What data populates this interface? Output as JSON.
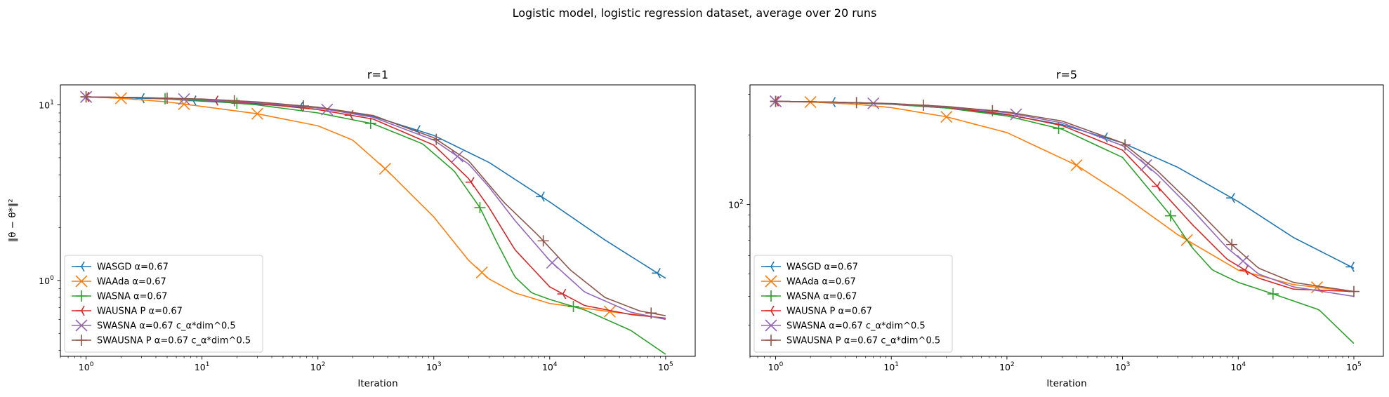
{
  "figure": {
    "suptitle": "Logistic model, logistic regression dataset, average over 20 runs"
  },
  "chart_data": [
    {
      "type": "line",
      "title": "r=1",
      "xlabel": "Iteration",
      "ylabel": "‖θ − θ*‖²",
      "xscale": "log",
      "yscale": "log",
      "xlim": [
        0.6,
        180000
      ],
      "ylim": [
        0.37,
        13
      ],
      "xticks": [
        {
          "v": 1,
          "b": "10",
          "e": "0"
        },
        {
          "v": 10,
          "b": "10",
          "e": "1"
        },
        {
          "v": 100,
          "b": "10",
          "e": "2"
        },
        {
          "v": 1000,
          "b": "10",
          "e": "3"
        },
        {
          "v": 10000,
          "b": "10",
          "e": "4"
        },
        {
          "v": 100000,
          "b": "10",
          "e": "5"
        }
      ],
      "yticks": [
        {
          "v": 1,
          "b": "10",
          "e": "0"
        },
        {
          "v": 10,
          "b": "10",
          "e": "1"
        }
      ],
      "grid": false,
      "legend": "lower-left",
      "series": [
        {
          "name": "WASGD α=0.67",
          "color": "#1f77b4",
          "marker": "tri_left",
          "x": [
            1,
            2,
            5,
            10,
            30,
            100,
            300,
            1000,
            3000,
            10000,
            30000,
            100000
          ],
          "y": [
            11.1,
            11.0,
            10.8,
            10.5,
            10.1,
            9.6,
            8.6,
            6.7,
            4.7,
            2.8,
            1.7,
            1.03
          ],
          "mx": [
            1,
            3,
            8.4,
            70,
            720,
            8500,
            85000
          ]
        },
        {
          "name": "WAAda α=0.67",
          "color": "#ff7f0e",
          "marker": "x",
          "x": [
            1,
            2,
            5,
            10,
            30,
            100,
            200,
            400,
            1000,
            2000,
            3000,
            5000,
            10000,
            30000,
            100000
          ],
          "y": [
            11.1,
            10.9,
            10.4,
            9.8,
            8.9,
            7.6,
            6.3,
            4.2,
            2.3,
            1.3,
            1.02,
            0.85,
            0.74,
            0.67,
            0.61
          ],
          "mx": [
            1,
            2,
            7,
            30,
            380,
            2600,
            33000
          ]
        },
        {
          "name": "WASNA α=0.67",
          "color": "#2ca02c",
          "marker": "plus",
          "x": [
            1,
            3,
            10,
            30,
            100,
            300,
            800,
            1500,
            2500,
            3500,
            5000,
            7000,
            10000,
            20000,
            50000,
            100000
          ],
          "y": [
            11.1,
            11.0,
            10.6,
            10.0,
            9.0,
            7.8,
            6.0,
            4.2,
            2.6,
            1.65,
            1.05,
            0.85,
            0.78,
            0.68,
            0.52,
            0.38
          ],
          "mx": [
            1,
            4.8,
            20,
            285,
            2500,
            16000
          ]
        },
        {
          "name": "WAUSNA P α=0.67",
          "color": "#d62728",
          "marker": "tri_left",
          "x": [
            1,
            3,
            10,
            30,
            100,
            300,
            1000,
            2000,
            3000,
            5000,
            10000,
            20000,
            50000,
            100000
          ],
          "y": [
            11.1,
            11.0,
            10.7,
            10.2,
            9.4,
            8.3,
            5.9,
            3.8,
            2.6,
            1.5,
            0.92,
            0.72,
            0.64,
            0.61
          ],
          "mx": [
            1,
            13,
            190,
            2100,
            13000
          ]
        },
        {
          "name": "SWASNA α=0.67 c_α*dim^0.5",
          "color": "#9467bd",
          "marker": "x",
          "x": [
            1,
            3,
            10,
            30,
            100,
            300,
            1000,
            2000,
            3000,
            5000,
            10000,
            20000,
            50000,
            100000
          ],
          "y": [
            11.1,
            11.0,
            10.7,
            10.3,
            9.6,
            8.5,
            6.3,
            4.6,
            3.4,
            2.2,
            1.3,
            0.86,
            0.66,
            0.6
          ],
          "mx": [
            1,
            7,
            120,
            1600,
            10500
          ]
        },
        {
          "name": "SWAUSNA P α=0.67 c_α*dim^0.5",
          "color": "#8c564b",
          "marker": "plus",
          "x": [
            1,
            3,
            10,
            30,
            100,
            300,
            1000,
            2000,
            4000,
            8000,
            15000,
            30000,
            60000,
            100000
          ],
          "y": [
            11.1,
            11.0,
            10.8,
            10.4,
            9.7,
            8.7,
            6.5,
            4.8,
            2.8,
            1.8,
            1.15,
            0.8,
            0.67,
            0.63
          ],
          "mx": [
            1,
            5,
            19,
            75,
            1050,
            8800,
            75000
          ]
        }
      ]
    },
    {
      "type": "line",
      "title": "r=5",
      "xlabel": "Iteration",
      "ylabel": "",
      "xscale": "log",
      "yscale": "log",
      "xlim": [
        0.6,
        180000
      ],
      "ylim": [
        22,
        330
      ],
      "xticks": [
        {
          "v": 1,
          "b": "10",
          "e": "0"
        },
        {
          "v": 10,
          "b": "10",
          "e": "1"
        },
        {
          "v": 100,
          "b": "10",
          "e": "2"
        },
        {
          "v": 1000,
          "b": "10",
          "e": "3"
        },
        {
          "v": 10000,
          "b": "10",
          "e": "4"
        },
        {
          "v": 100000,
          "b": "10",
          "e": "5"
        }
      ],
      "yticks": [
        {
          "v": 100,
          "b": "10",
          "e": "2"
        }
      ],
      "grid": false,
      "legend": "lower-left",
      "series": [
        {
          "name": "WASGD α=0.67",
          "color": "#1f77b4",
          "marker": "tri_left",
          "x": [
            1,
            3,
            10,
            30,
            100,
            300,
            1000,
            3000,
            10000,
            30000,
            100000
          ],
          "y": [
            280,
            278,
            272,
            262,
            245,
            222,
            185,
            145,
            103,
            72,
            53
          ],
          "mx": [
            1,
            3.1,
            700,
            8800,
            95000
          ]
        },
        {
          "name": "WAAda α=0.67",
          "color": "#ff7f0e",
          "marker": "x",
          "x": [
            1,
            2,
            5,
            10,
            30,
            100,
            400,
            1000,
            3000,
            10000,
            30000,
            100000
          ],
          "y": [
            280,
            278,
            272,
            263,
            240,
            205,
            148,
            110,
            74,
            52,
            45,
            42
          ],
          "mx": [
            1,
            2,
            30,
            400,
            3600,
            48000
          ]
        },
        {
          "name": "WASNA α=0.67",
          "color": "#2ca02c",
          "marker": "plus",
          "x": [
            1,
            3,
            10,
            30,
            100,
            300,
            1000,
            2500,
            4000,
            6000,
            10000,
            20000,
            50000,
            100000
          ],
          "y": [
            280,
            278,
            272,
            262,
            242,
            212,
            160,
            92,
            65,
            52,
            46,
            41,
            35,
            25
          ],
          "mx": [
            1,
            280,
            2600,
            20000
          ]
        },
        {
          "name": "WAUSNA P α=0.67",
          "color": "#d62728",
          "marker": "tri_left",
          "x": [
            1,
            3,
            10,
            30,
            100,
            300,
            1000,
            2000,
            4000,
            8000,
            15000,
            30000,
            100000
          ],
          "y": [
            280,
            278,
            273,
            264,
            246,
            220,
            172,
            120,
            82,
            58,
            48,
            43,
            42
          ],
          "mx": [
            1,
            2000,
            11500
          ]
        },
        {
          "name": "SWASNA α=0.67 c_α*dim^0.5",
          "color": "#9467bd",
          "marker": "x",
          "x": [
            1,
            3,
            10,
            30,
            100,
            300,
            1000,
            2000,
            4000,
            8000,
            15000,
            30000,
            100000
          ],
          "y": [
            280,
            278,
            273,
            265,
            250,
            226,
            180,
            135,
            95,
            65,
            50,
            44,
            40
          ],
          "mx": [
            1,
            7,
            120,
            1600,
            11000
          ]
        },
        {
          "name": "SWAUSNA P α=0.67 c_α*dim^0.5",
          "color": "#8c564b",
          "marker": "plus",
          "x": [
            1,
            3,
            10,
            30,
            100,
            300,
            1000,
            2000,
            4000,
            8000,
            15000,
            30000,
            100000
          ],
          "y": [
            280,
            278,
            274,
            266,
            252,
            230,
            185,
            140,
            100,
            70,
            53,
            46,
            42
          ],
          "mx": [
            1,
            5,
            19,
            75,
            1050,
            8800,
            100000
          ]
        }
      ]
    }
  ]
}
